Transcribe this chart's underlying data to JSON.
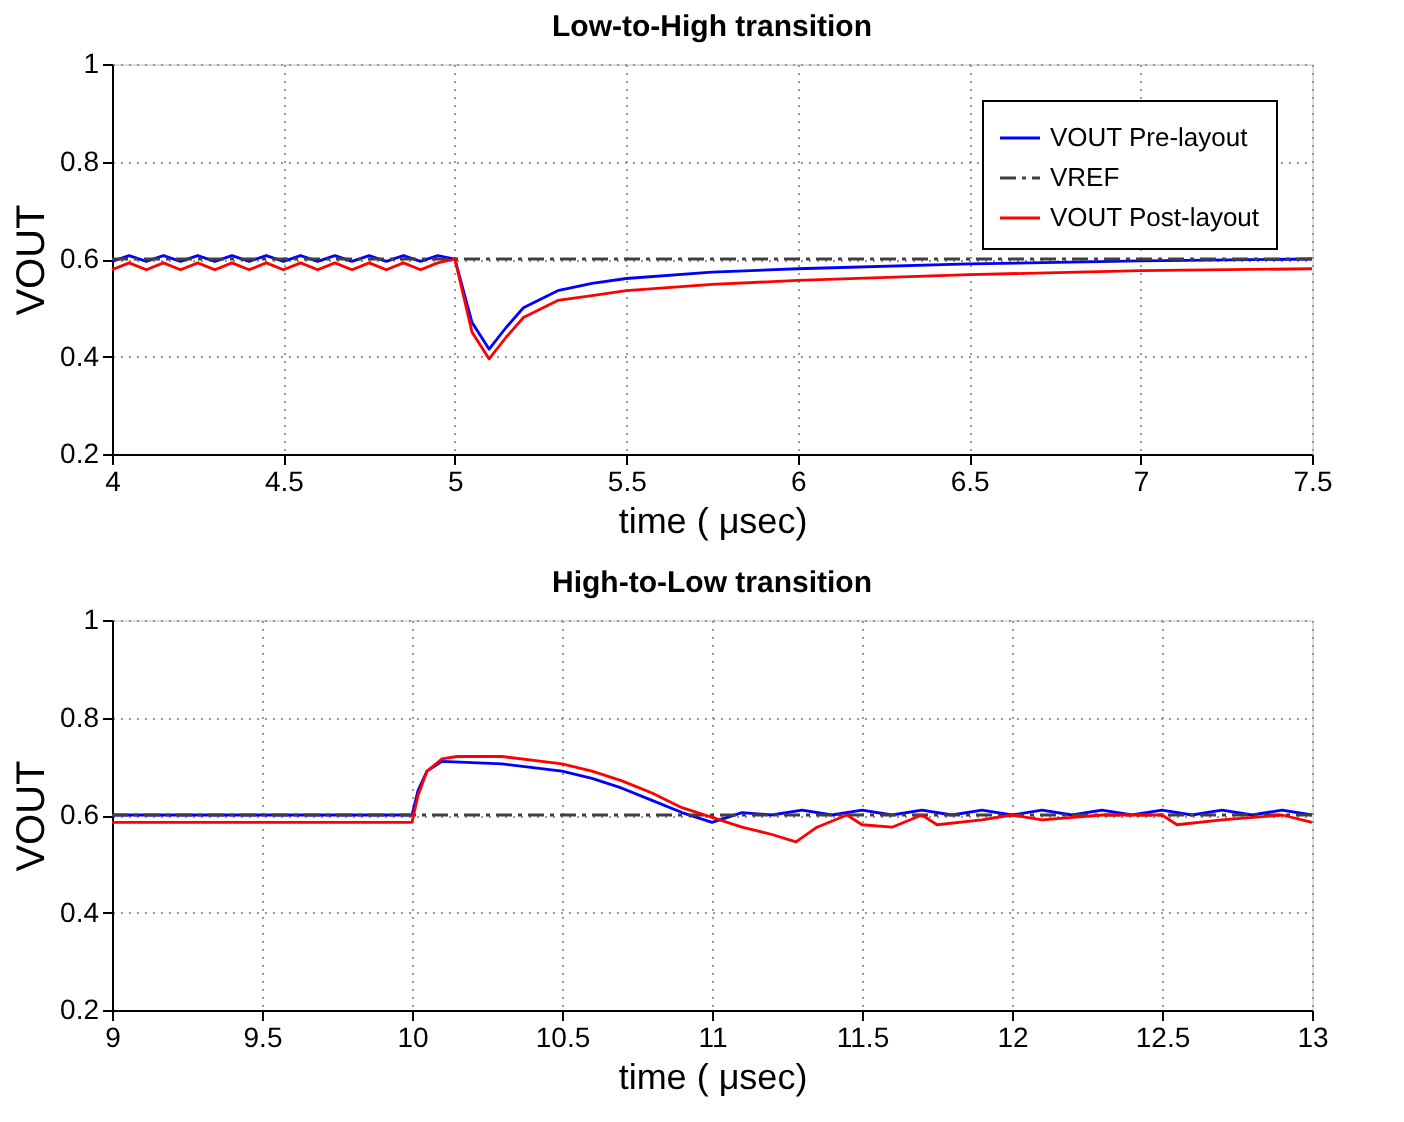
{
  "chart_data": [
    {
      "type": "line",
      "title": "Low-to-High transition",
      "xlabel": "time (  μsec)",
      "ylabel": "VOUT",
      "xlim": [
        4,
        7.5
      ],
      "xticks": [
        4,
        4.5,
        5,
        5.5,
        6,
        6.5,
        7,
        7.5
      ],
      "ylim": [
        0.2,
        1
      ],
      "yticks": [
        0.2,
        0.4,
        0.6,
        0.8,
        1
      ],
      "grid": true,
      "legend": "top right",
      "marker": "none",
      "series": [
        {
          "name": "VOUT Pre-layout",
          "color": "#0000ff",
          "line_style": "solid",
          "x": [
            4,
            4.05,
            4.1,
            4.15,
            4.2,
            4.25,
            4.3,
            4.35,
            4.4,
            4.45,
            4.5,
            4.55,
            4.6,
            4.65,
            4.7,
            4.75,
            4.8,
            4.85,
            4.9,
            4.95,
            5,
            5.05,
            5.1,
            5.15,
            5.2,
            5.3,
            5.4,
            5.5,
            5.75,
            6,
            6.5,
            7,
            7.5
          ],
          "values": [
            0.595,
            0.607,
            0.595,
            0.607,
            0.595,
            0.607,
            0.595,
            0.607,
            0.595,
            0.607,
            0.595,
            0.607,
            0.595,
            0.607,
            0.595,
            0.607,
            0.595,
            0.607,
            0.595,
            0.607,
            0.6,
            0.47,
            0.415,
            0.46,
            0.5,
            0.535,
            0.55,
            0.56,
            0.573,
            0.58,
            0.59,
            0.596,
            0.6
          ]
        },
        {
          "name": "VREF",
          "color": "#404040",
          "line_style": "dashed",
          "x": [
            4,
            7.5
          ],
          "values": [
            0.6,
            0.6
          ]
        },
        {
          "name": "VOUT Post-layout",
          "color": "#ff0000",
          "line_style": "solid",
          "x": [
            4,
            4.05,
            4.1,
            4.15,
            4.2,
            4.25,
            4.3,
            4.35,
            4.4,
            4.45,
            4.5,
            4.55,
            4.6,
            4.65,
            4.7,
            4.75,
            4.8,
            4.85,
            4.9,
            4.95,
            5,
            5.05,
            5.1,
            5.15,
            5.2,
            5.3,
            5.4,
            5.5,
            5.75,
            6,
            6.5,
            7,
            7.5
          ],
          "values": [
            0.578,
            0.592,
            0.578,
            0.592,
            0.578,
            0.592,
            0.578,
            0.592,
            0.578,
            0.592,
            0.578,
            0.592,
            0.578,
            0.592,
            0.578,
            0.592,
            0.578,
            0.592,
            0.578,
            0.592,
            0.6,
            0.45,
            0.395,
            0.44,
            0.48,
            0.515,
            0.525,
            0.535,
            0.548,
            0.556,
            0.568,
            0.576,
            0.58
          ]
        }
      ]
    },
    {
      "type": "line",
      "title": "High-to-Low transition",
      "xlabel": "time (  μsec)",
      "ylabel": "VOUT",
      "xlim": [
        9,
        13
      ],
      "xticks": [
        9,
        9.5,
        10,
        10.5,
        11,
        11.5,
        12,
        12.5,
        13
      ],
      "ylim": [
        0.2,
        1
      ],
      "yticks": [
        0.2,
        0.4,
        0.6,
        0.8,
        1
      ],
      "grid": true,
      "marker": "none",
      "series": [
        {
          "color": "#0000ff",
          "line_style": "solid",
          "x": [
            9,
            10,
            10.02,
            10.05,
            10.1,
            10.3,
            10.5,
            10.6,
            10.7,
            10.8,
            10.9,
            11,
            11.1,
            11.2,
            11.3,
            11.4,
            11.5,
            11.6,
            11.7,
            11.8,
            11.9,
            12,
            12.1,
            12.2,
            12.3,
            12.4,
            12.5,
            12.6,
            12.7,
            12.8,
            12.9,
            13
          ],
          "values": [
            0.6,
            0.6,
            0.65,
            0.69,
            0.71,
            0.705,
            0.69,
            0.675,
            0.655,
            0.63,
            0.605,
            0.585,
            0.605,
            0.6,
            0.61,
            0.6,
            0.61,
            0.6,
            0.61,
            0.6,
            0.61,
            0.6,
            0.61,
            0.6,
            0.61,
            0.6,
            0.61,
            0.6,
            0.61,
            0.6,
            0.61,
            0.6
          ]
        },
        {
          "color": "#404040",
          "line_style": "dashed",
          "x": [
            9,
            13
          ],
          "values": [
            0.6,
            0.6
          ]
        },
        {
          "color": "#ff0000",
          "line_style": "solid",
          "x": [
            9,
            10,
            10.02,
            10.05,
            10.1,
            10.15,
            10.3,
            10.5,
            10.6,
            10.7,
            10.8,
            10.9,
            11,
            11.1,
            11.2,
            11.28,
            11.35,
            11.45,
            11.5,
            11.6,
            11.7,
            11.75,
            11.9,
            12,
            12.1,
            12.3,
            12.5,
            12.55,
            12.7,
            12.9,
            13
          ],
          "values": [
            0.585,
            0.585,
            0.64,
            0.69,
            0.715,
            0.72,
            0.72,
            0.705,
            0.69,
            0.67,
            0.645,
            0.615,
            0.595,
            0.575,
            0.56,
            0.545,
            0.575,
            0.6,
            0.58,
            0.575,
            0.6,
            0.58,
            0.59,
            0.6,
            0.59,
            0.6,
            0.6,
            0.58,
            0.59,
            0.6,
            0.585
          ]
        }
      ]
    }
  ]
}
